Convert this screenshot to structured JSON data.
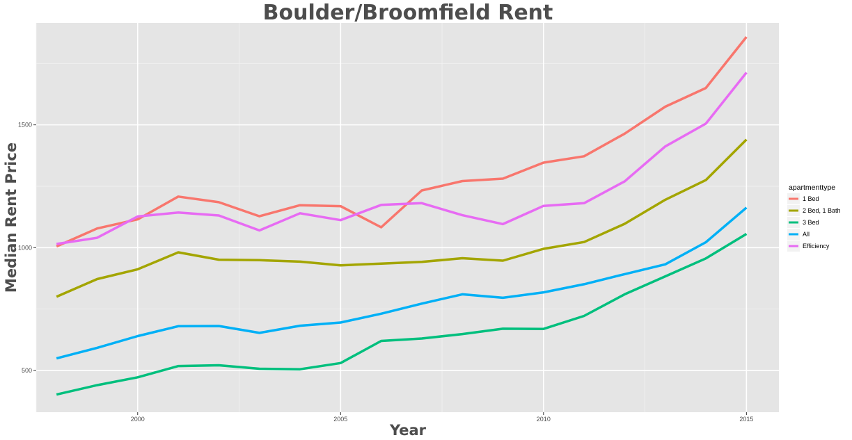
{
  "chart_data": {
    "type": "line",
    "title": "Boulder/Broomfield Rent",
    "xlabel": "Year",
    "ylabel": "Median Rent Price",
    "xlim": [
      1997.5,
      2015.8
    ],
    "ylim": [
      330,
      1915
    ],
    "x_ticks": [
      2000,
      2005,
      2010,
      2015
    ],
    "y_ticks": [
      500,
      1000,
      1500
    ],
    "grid": true,
    "legend_title": "apartmenttype",
    "legend_position": "right",
    "x": [
      1998,
      1999,
      2000,
      2001,
      2002,
      2003,
      2004,
      2005,
      2006,
      2007,
      2008,
      2009,
      2010,
      2011,
      2012,
      2013,
      2014,
      2015
    ],
    "series": [
      {
        "name": "1 Bed",
        "color": "#F8766D",
        "values": [
          1005,
          1078,
          1115,
          1208,
          1185,
          1128,
          1173,
          1169,
          1083,
          1233,
          1271,
          1281,
          1346,
          1372,
          1464,
          1574,
          1650,
          1858
        ]
      },
      {
        "name": "2 Bed, 1 Bath",
        "color": "#A3A500",
        "values": [
          800,
          872,
          912,
          981,
          951,
          949,
          943,
          928,
          935,
          942,
          957,
          947,
          995,
          1023,
          1097,
          1195,
          1275,
          1440
        ]
      },
      {
        "name": "3 Bed",
        "color": "#00BF7D",
        "values": [
          402,
          440,
          472,
          518,
          521,
          507,
          505,
          530,
          620,
          630,
          648,
          670,
          669,
          722,
          810,
          883,
          956,
          1056
        ]
      },
      {
        "name": "All",
        "color": "#00B0F6",
        "values": [
          549,
          592,
          640,
          680,
          681,
          653,
          682,
          695,
          731,
          772,
          810,
          796,
          818,
          851,
          892,
          932,
          1022,
          1163
        ]
      },
      {
        "name": "Efficiency",
        "color": "#E76BF3",
        "values": [
          1015,
          1040,
          1127,
          1143,
          1131,
          1070,
          1140,
          1112,
          1174,
          1181,
          1132,
          1096,
          1170,
          1181,
          1270,
          1412,
          1505,
          1713
        ]
      }
    ]
  }
}
